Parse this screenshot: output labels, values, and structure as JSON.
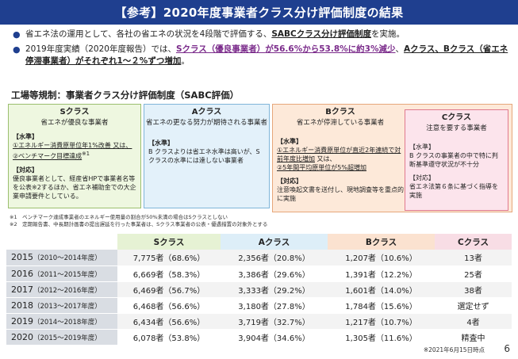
{
  "title": "【参考】2020年度事業者クラス分け評価制度の結果",
  "bullets": [
    {
      "pre": "省エネ法の運用として、各社の省エネの状況を4段階で評価する、",
      "emph": "SABCクラス分け評価制度",
      "post": "を実施。"
    },
    {
      "p1": "2019年度実績（2020年度報告）では、",
      "u1": "Sクラス（優良事業者）",
      "hl1": "が56.6%から53.8%に約3%減少",
      "p2": "、",
      "u2": "Aクラス、Bクラス（省エネ停滞事業者）がそれぞれ1～２%ずつ増加",
      "p3": "。"
    }
  ],
  "sabc_title": "工場等規制：事業者クラス分け評価制度（SABC評価）",
  "panels": {
    "s": {
      "head": "Sクラス",
      "desc": "省エネが優良な事業者",
      "req_label": "【水準】",
      "req_1": "①エネルギー消費原単位年1%改善 又は、",
      "req_2": "②ベンチマーク目標達成",
      "req_2_sup": "※1",
      "act_label": "【対応】",
      "act_text": "優良事業者として、経産省HPで事業者名等を公表※2するほか、省エネ補助金での大企業申請要件としている。"
    },
    "a": {
      "head": "Aクラス",
      "desc": "省エネの更なる努力が期待される事業者",
      "req_label": "【水準】",
      "req_text": "B クラスよりは省エネ水準は高いが、Sクラスの水準には達しない事業者"
    },
    "b": {
      "head": "Bクラス",
      "desc": "省エネが停滞している事業者",
      "req_label": "【水準】",
      "req_1": "①エネルギー消費原単位が直近2年連続で対前年度比増加",
      "req_1_tail": " 又は、",
      "req_2": "②5年間平均原単位が5%超増加",
      "act_label": "【対応】",
      "act_text": "注意喚起文書を送付し、現地調査等を重点的に実施"
    },
    "c": {
      "head": "Cクラス",
      "desc": "注意を要する事業者",
      "req_label": "【水準】",
      "req_text": "B クラスの事業者の中で特に判断基準遵守状況が不十分",
      "act_label": "【対応】",
      "act_text": "省エネ法第６条に基づく指導を実施"
    }
  },
  "notes": [
    "※1　ベンチマーク達成事業者のエネルギー使用量の割合が50%未満の場合はSクラスとしない",
    "※2　定期報告書、中長期計画書の提出遅延を行った事業者は、Sクラス事業者の公表・優遇措置の対象外とする"
  ],
  "table": {
    "headers": [
      "",
      "Sクラス",
      "Aクラス",
      "Bクラス",
      "Cクラス"
    ],
    "rows": [
      {
        "year": "2015",
        "range": "（2010～2014年度）",
        "s": "7,775者（68.6%）",
        "a": "2,356者（20.8%）",
        "b": "1,207者（10.6%）",
        "c": "13者"
      },
      {
        "year": "2016",
        "range": "（2011～2015年度）",
        "s": "6,669者（58.3%）",
        "a": "3,386者（29.6%）",
        "b": "1,391者（12.2%）",
        "c": "25者"
      },
      {
        "year": "2017",
        "range": "（2012～2016年度）",
        "s": "6,469者（56.7%）",
        "a": "3,333者（29.2%）",
        "b": "1,601者（14.0%）",
        "c": "38者"
      },
      {
        "year": "2018",
        "range": "（2013～2017年度）",
        "s": "6,468者（56.6%）",
        "a": "3,180者（27.8%）",
        "b": "1,784者（15.6%）",
        "c": "選定せず"
      },
      {
        "year": "2019",
        "range": "（2014～2018年度）",
        "s": "6,434者（56.6%）",
        "a": "3,719者（32.7%）",
        "b": "1,217者（10.7%）",
        "c": "4者"
      },
      {
        "year": "2020",
        "range": "（2015～2019年度）",
        "s": "6,078者（53.8%）",
        "a": "3,904者（34.6%）",
        "b": "1,305者（11.6%）",
        "c": "精査中"
      }
    ]
  },
  "footnote": "※2021年6月15日時点",
  "page_number": "6"
}
